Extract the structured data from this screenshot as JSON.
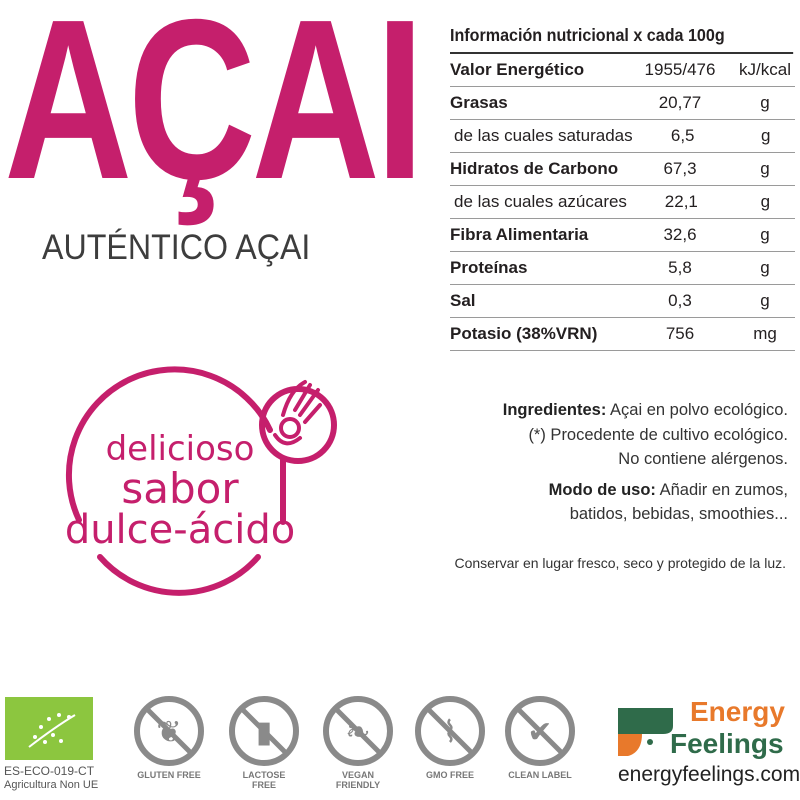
{
  "brand_color": "#c51f6c",
  "title": "AÇAI",
  "subtitle": "AUTÉNTICO AÇAI",
  "nutrition": {
    "heading": "Información nutricional x cada 100g",
    "rows": [
      {
        "name": "Valor Energético",
        "value": "1955/476",
        "unit": "kJ/kcal",
        "style": "bold"
      },
      {
        "name": "Grasas",
        "value": "20,77",
        "unit": "g",
        "style": "bold"
      },
      {
        "name": "de las cuales saturadas",
        "value": "6,5",
        "unit": "g",
        "style": "indent"
      },
      {
        "name": "Hidratos de Carbono",
        "value": "67,3",
        "unit": "g",
        "style": "bold"
      },
      {
        "name": "de las cuales azúcares",
        "value": "22,1",
        "unit": "g",
        "style": "indent"
      },
      {
        "name": "Fibra Alimentaria",
        "value": "32,6",
        "unit": "g",
        "style": "bold"
      },
      {
        "name": "Proteínas",
        "value": "5,8",
        "unit": "g",
        "style": "bold"
      },
      {
        "name": "Sal",
        "value": "0,3",
        "unit": "g",
        "style": "bold"
      },
      {
        "name": "Potasio (38%VRN)",
        "value": "756",
        "unit": "mg",
        "style": "bold"
      }
    ]
  },
  "badge": {
    "line1": "delicioso",
    "line2": "sabor",
    "line3": "dulce-ácido",
    "icon": "ok-hand-icon"
  },
  "ingredients": {
    "label": "Ingredientes:",
    "text": "Açai en polvo ecológico.",
    "note1": "(*) Procedente de cultivo ecológico.",
    "note2": "No contiene alérgenos.",
    "usage_label": "Modo de uso:",
    "usage_text": "Añadir en zumos,",
    "usage_text2": "batidos, bebidas, smoothies..."
  },
  "storage": "Conservar en lugar fresco, seco y protegido de la luz.",
  "footer": {
    "eco_code": "ES-ECO-019-CT",
    "eco_origin": "Agricultura Non UE",
    "icons": [
      {
        "label": "GLUTEN FREE",
        "icon": "wheat-icon"
      },
      {
        "label": "LACTOSE FREE",
        "icon": "milk-bottle-icon"
      },
      {
        "label": "VEGAN FRIENDLY",
        "icon": "leaves-icon"
      },
      {
        "label": "GMO FREE",
        "icon": "dna-icon"
      },
      {
        "label": "CLEAN LABEL",
        "icon": "check-leaf-icon"
      }
    ],
    "brand_line1": "Energy",
    "brand_line2": "Feelings",
    "website": "energyfeelings.com",
    "brand_orange": "#e8792b",
    "brand_green": "#2f6b4a"
  }
}
